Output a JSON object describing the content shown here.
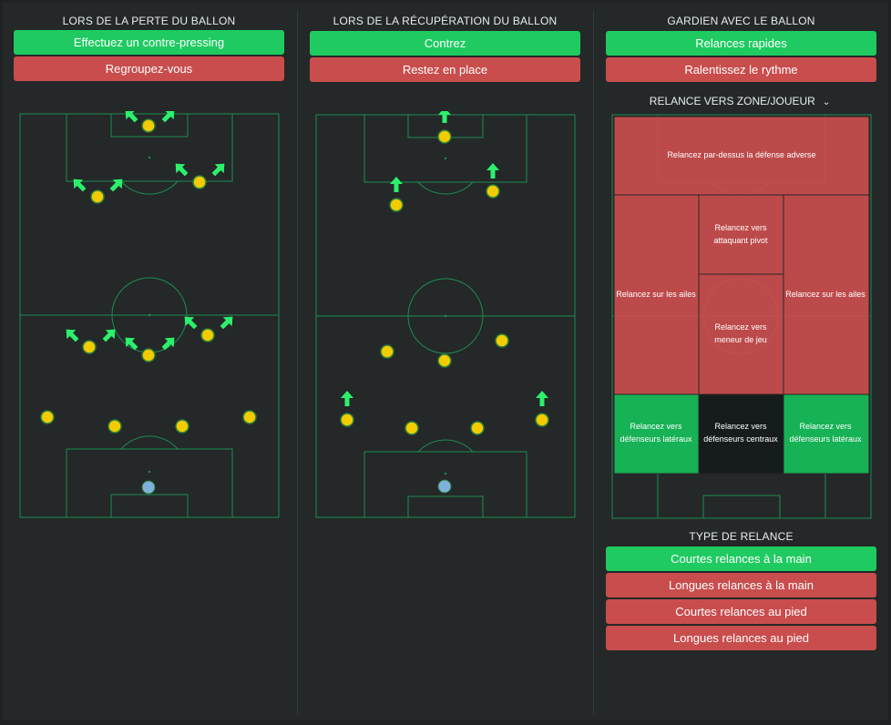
{
  "colors": {
    "on": "#1fcb61",
    "off": "#c94d4d",
    "pitch_line": "#1e8c52",
    "player": "#f2cc00",
    "player_ring": "#2a7d3c",
    "keeper": "#7eb2dc",
    "arrow": "#2cf06c"
  },
  "columns": [
    {
      "title": "LORS DE LA PERTE DU BALLON",
      "options": [
        {
          "label": "Effectuez un contre-pressing",
          "selected": true
        },
        {
          "label": "Regroupez-vous",
          "selected": false
        }
      ]
    },
    {
      "title": "LORS DE LA RÉCUPÉRATION DU BALLON",
      "options": [
        {
          "label": "Contrez",
          "selected": true
        },
        {
          "label": "Restez en place",
          "selected": false
        }
      ]
    },
    {
      "title": "GARDIEN AVEC LE BALLON",
      "options": [
        {
          "label": "Relances rapides",
          "selected": true
        },
        {
          "label": "Ralentissez le rythme",
          "selected": false
        }
      ]
    }
  ],
  "distribution": {
    "dropdown_label": "RELANCE VERS ZONE/JOUEUR",
    "dropdown_icon": "chevron-down-icon",
    "zones": {
      "over_defence": "Relancez par-dessus la défense adverse",
      "target_man": [
        "Relancez vers",
        "attaquant pivot"
      ],
      "wings_left": "Relancez sur les ailes",
      "wings_right": "Relancez sur les ailes",
      "playmaker": [
        "Relancez vers",
        "meneur de jeu"
      ],
      "fullbacks_left": [
        "Relancez vers",
        "défenseurs latéraux"
      ],
      "centre_backs": [
        "Relancez vers",
        "défenseurs centraux"
      ],
      "fullbacks_right": [
        "Relancez vers",
        "défenseurs latéraux"
      ]
    }
  },
  "distribution_type": {
    "title": "TYPE DE RELANCE",
    "options": [
      {
        "label": "Courtes relances à la main",
        "selected": true
      },
      {
        "label": "Longues relances à la main",
        "selected": false
      },
      {
        "label": "Courtes relances au pied",
        "selected": false
      },
      {
        "label": "Longues relances au pied",
        "selected": false
      }
    ]
  }
}
